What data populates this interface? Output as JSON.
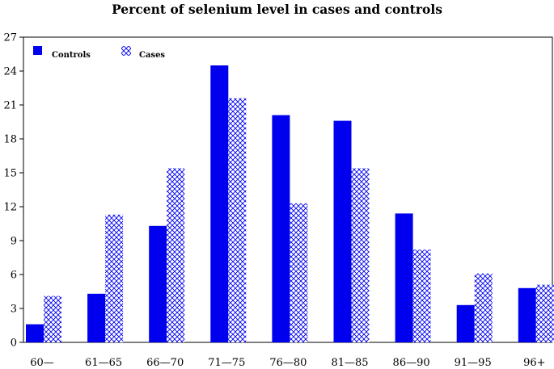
{
  "chart_data": {
    "type": "bar",
    "title": "Percent of selenium level in cases and controls",
    "xlabel": "",
    "ylabel": "",
    "categories": [
      "60—",
      "61—65",
      "66—70",
      "71—75",
      "76—80",
      "81—85",
      "86—90",
      "91—95",
      "96+"
    ],
    "series": [
      {
        "name": "Controls",
        "color": "#0000ee",
        "pattern": "solid",
        "values": [
          1.6,
          4.3,
          10.3,
          24.5,
          20.1,
          19.6,
          11.4,
          3.3,
          4.8
        ]
      },
      {
        "name": "Cases",
        "color": "#0000ee",
        "pattern": "crosshatch",
        "values": [
          4.1,
          11.3,
          15.4,
          21.6,
          12.3,
          15.4,
          8.2,
          6.1,
          5.1
        ]
      }
    ],
    "ylim": [
      0,
      27
    ],
    "yticks": [
      0,
      3,
      6,
      9,
      12,
      15,
      18,
      21,
      24,
      27
    ],
    "grid": false,
    "legend_position": "top-left"
  }
}
